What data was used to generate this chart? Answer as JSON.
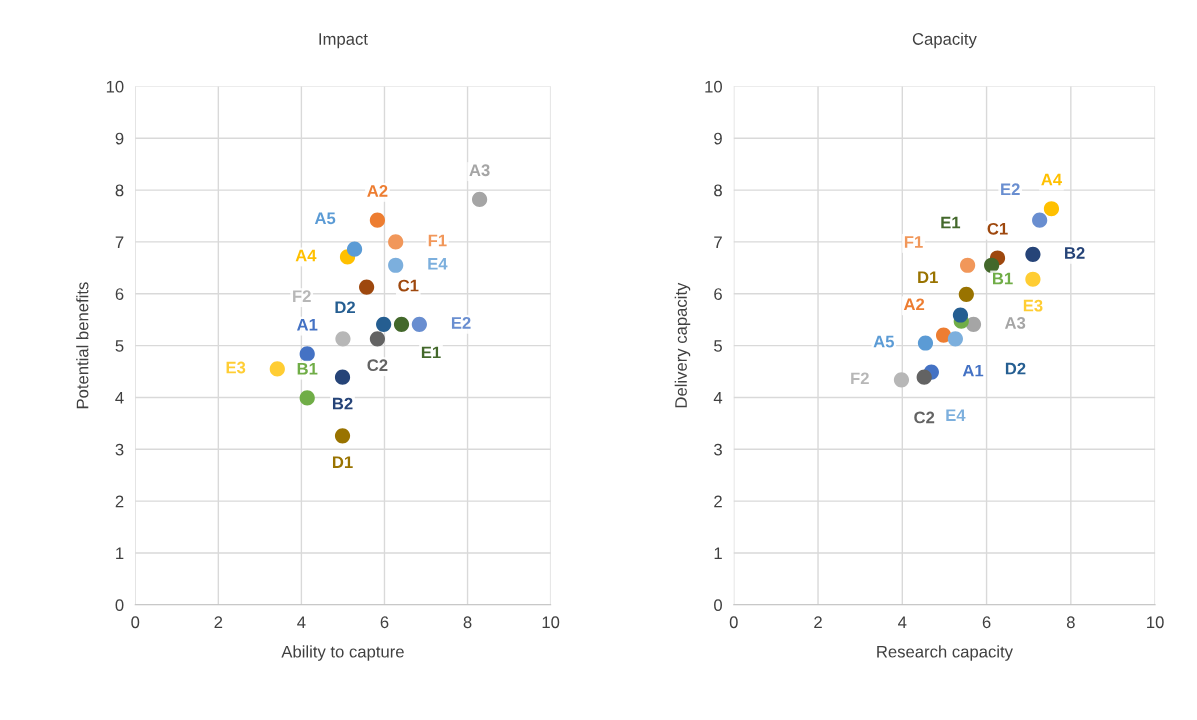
{
  "chart_data": [
    {
      "type": "scatter",
      "title": "Impact",
      "xlabel": "Ability to capture",
      "ylabel": "Potential benefits",
      "xlim": [
        0,
        10
      ],
      "ylim": [
        0,
        10
      ],
      "xticks": [
        0,
        2,
        4,
        6,
        8,
        10
      ],
      "yticks": [
        0,
        1,
        2,
        3,
        4,
        5,
        6,
        7,
        8,
        9,
        10
      ],
      "grid": true,
      "marker": "circle",
      "series": [
        {
          "name": "A1",
          "color": "#4472c4",
          "x": [
            4.14
          ],
          "values": [
            4.84
          ]
        },
        {
          "name": "A2",
          "color": "#ed7d31",
          "x": [
            5.83
          ],
          "values": [
            7.42
          ]
        },
        {
          "name": "A3",
          "color": "#a5a5a5",
          "x": [
            8.29
          ],
          "values": [
            7.82
          ]
        },
        {
          "name": "A4",
          "color": "#ffc000",
          "x": [
            5.11
          ],
          "values": [
            6.71
          ]
        },
        {
          "name": "A5",
          "color": "#5b9bd5",
          "x": [
            5.28
          ],
          "values": [
            6.86
          ]
        },
        {
          "name": "B1",
          "color": "#70ad47",
          "x": [
            4.14
          ],
          "values": [
            3.99
          ]
        },
        {
          "name": "B2",
          "color": "#264478",
          "x": [
            4.99
          ],
          "values": [
            4.39
          ]
        },
        {
          "name": "C1",
          "color": "#9e480e",
          "x": [
            5.57
          ],
          "values": [
            6.13
          ]
        },
        {
          "name": "C2",
          "color": "#636363",
          "x": [
            5.83
          ],
          "values": [
            5.13
          ]
        },
        {
          "name": "D1",
          "color": "#997300",
          "x": [
            4.99
          ],
          "values": [
            3.26
          ]
        },
        {
          "name": "D2",
          "color": "#255e91",
          "x": [
            5.98
          ],
          "values": [
            5.41
          ]
        },
        {
          "name": "E1",
          "color": "#43682b",
          "x": [
            6.41
          ],
          "values": [
            5.41
          ]
        },
        {
          "name": "E2",
          "color": "#698ed0",
          "x": [
            6.84
          ],
          "values": [
            5.41
          ]
        },
        {
          "name": "E3",
          "color": "#ffcd33",
          "x": [
            3.42
          ],
          "values": [
            4.55
          ]
        },
        {
          "name": "E4",
          "color": "#7cafdd",
          "x": [
            6.27
          ],
          "values": [
            6.55
          ]
        },
        {
          "name": "F1",
          "color": "#f1975a",
          "x": [
            6.27
          ],
          "values": [
            7.0
          ]
        },
        {
          "name": "F2",
          "color": "#b7b7b7",
          "x": [
            5.0
          ],
          "values": [
            5.13
          ]
        }
      ]
    },
    {
      "type": "scatter",
      "title": "Capacity",
      "xlabel": "Research capacity",
      "ylabel": "Delivery capacity",
      "xlim": [
        0,
        10
      ],
      "ylim": [
        0,
        10
      ],
      "xticks": [
        0,
        2,
        4,
        6,
        8,
        10
      ],
      "yticks": [
        0,
        1,
        2,
        3,
        4,
        5,
        6,
        7,
        8,
        9,
        10
      ],
      "grid": true,
      "marker": "circle",
      "series": [
        {
          "name": "A1",
          "color": "#4472c4",
          "x": [
            4.69
          ],
          "values": [
            4.49
          ]
        },
        {
          "name": "A2",
          "color": "#ed7d31",
          "x": [
            4.98
          ],
          "values": [
            5.2
          ]
        },
        {
          "name": "A3",
          "color": "#a5a5a5",
          "x": [
            5.69
          ],
          "values": [
            5.41
          ]
        },
        {
          "name": "A4",
          "color": "#ffc000",
          "x": [
            7.54
          ],
          "values": [
            7.64
          ]
        },
        {
          "name": "A5",
          "color": "#5b9bd5",
          "x": [
            4.55
          ],
          "values": [
            5.05
          ]
        },
        {
          "name": "B1",
          "color": "#70ad47",
          "x": [
            5.4
          ],
          "values": [
            5.47
          ]
        },
        {
          "name": "B2",
          "color": "#264478",
          "x": [
            7.1
          ],
          "values": [
            6.76
          ]
        },
        {
          "name": "C1",
          "color": "#9e480e",
          "x": [
            6.26
          ],
          "values": [
            6.69
          ]
        },
        {
          "name": "C2",
          "color": "#636363",
          "x": [
            4.52
          ],
          "values": [
            4.39
          ]
        },
        {
          "name": "D1",
          "color": "#997300",
          "x": [
            5.52
          ],
          "values": [
            5.99
          ]
        },
        {
          "name": "D2",
          "color": "#255e91",
          "x": [
            5.38
          ],
          "values": [
            5.59
          ]
        },
        {
          "name": "E1",
          "color": "#43682b",
          "x": [
            6.12
          ],
          "values": [
            6.55
          ]
        },
        {
          "name": "E2",
          "color": "#698ed0",
          "x": [
            7.26
          ],
          "values": [
            7.42
          ]
        },
        {
          "name": "E3",
          "color": "#ffcd33",
          "x": [
            7.1
          ],
          "values": [
            6.28
          ]
        },
        {
          "name": "E4",
          "color": "#7cafdd",
          "x": [
            5.26
          ],
          "values": [
            5.13
          ]
        },
        {
          "name": "F1",
          "color": "#f1975a",
          "x": [
            5.55
          ],
          "values": [
            6.55
          ]
        },
        {
          "name": "F2",
          "color": "#b7b7b7",
          "x": [
            3.98
          ],
          "values": [
            4.34
          ]
        }
      ]
    }
  ]
}
